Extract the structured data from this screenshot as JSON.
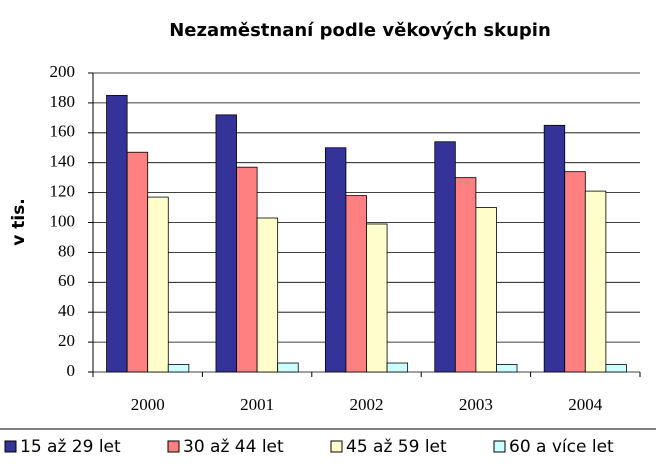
{
  "chart_data": {
    "type": "bar",
    "title": "Nezaměstnaní podle věkových skupin",
    "y_label": "v tis.",
    "categories": [
      "2000",
      "2001",
      "2002",
      "2003",
      "2004"
    ],
    "series": [
      {
        "name": "15 až 29 let",
        "color": "#333399",
        "values": [
          185,
          172,
          150,
          154,
          165
        ]
      },
      {
        "name": "30 až 44 let",
        "color": "#ff8080",
        "values": [
          147,
          137,
          118,
          130,
          134
        ]
      },
      {
        "name": "45 až 59 let",
        "color": "#ffffcc",
        "values": [
          117,
          103,
          99,
          110,
          121
        ]
      },
      {
        "name": "60 a více let",
        "color": "#ccffff",
        "values": [
          5,
          6,
          6,
          5,
          5
        ]
      }
    ],
    "ylim": [
      0,
      200
    ],
    "yticks": [
      0,
      20,
      40,
      60,
      80,
      100,
      120,
      140,
      160,
      180,
      200
    ],
    "grid": true,
    "legend": "bottom"
  }
}
